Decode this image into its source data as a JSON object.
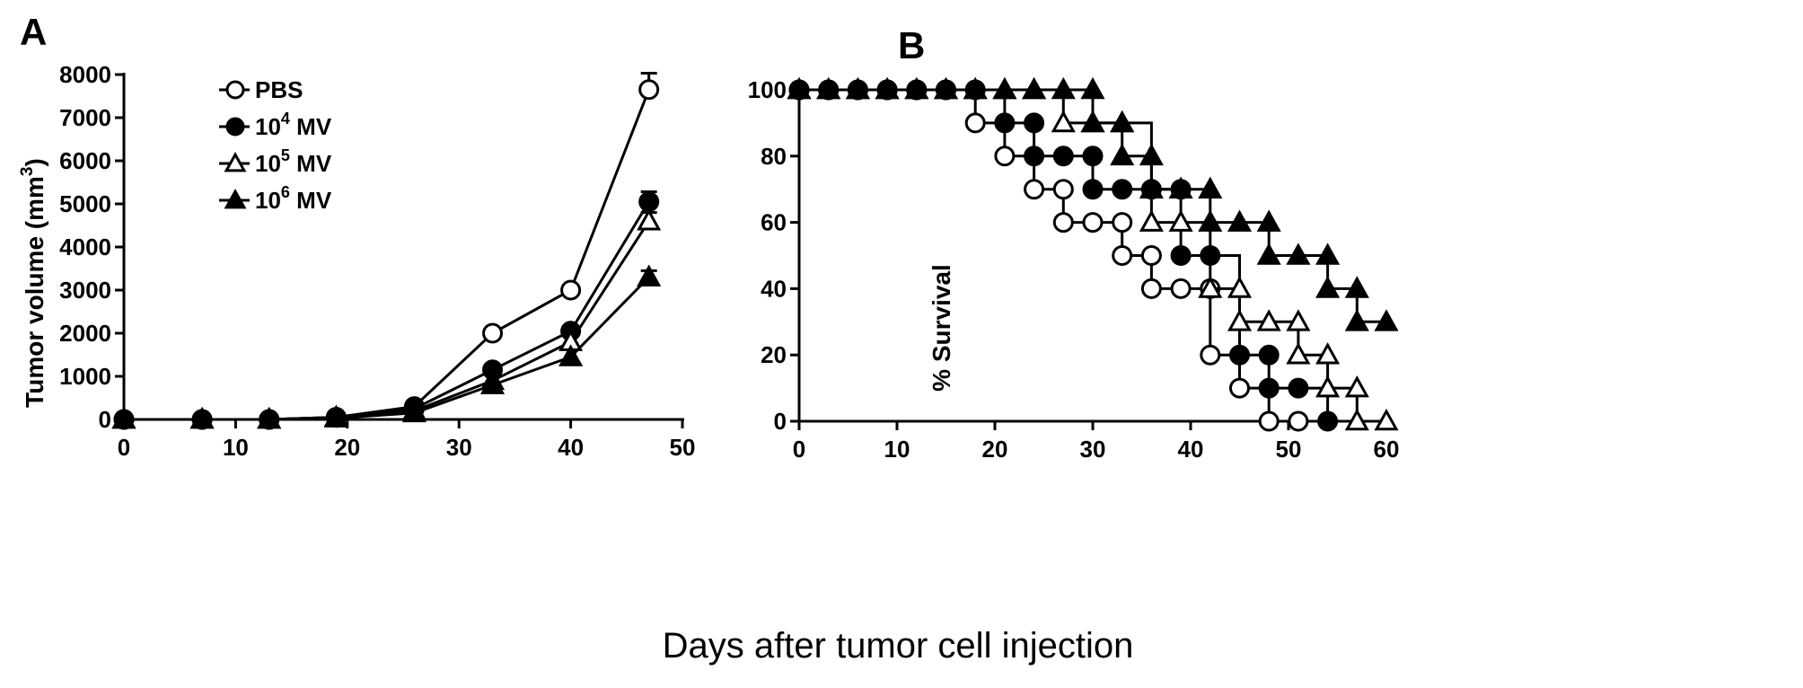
{
  "shared_xlabel": "Days after tumor cell  injection",
  "chart_data": [
    {
      "type": "line",
      "panel_label": "A",
      "xlabel": "",
      "ylabel": "Tumor volume (mm",
      "ylabel_sup": "3",
      "ylabel_end": ")",
      "xlim": [
        0,
        50
      ],
      "ylim": [
        0,
        8000
      ],
      "x_ticks": [
        0,
        10,
        20,
        30,
        40,
        50
      ],
      "y_ticks": [
        0,
        1000,
        2000,
        3000,
        4000,
        5000,
        6000,
        7000,
        8000
      ],
      "grid": false,
      "legend_placement": "top-left",
      "x": [
        0,
        7,
        13,
        19,
        26,
        33,
        40,
        47
      ],
      "series": [
        {
          "name": "PBS",
          "legend_base": "PBS",
          "legend_sup": "",
          "legend_tail": "",
          "marker": "circle-open",
          "values": [
            0,
            0,
            0,
            50,
            300,
            2000,
            3000,
            7650
          ],
          "errors": [
            0,
            0,
            0,
            0,
            0,
            0,
            0,
            380
          ]
        },
        {
          "name": "10^4 MV",
          "legend_base": "10",
          "legend_sup": "4",
          "legend_tail": " MV",
          "marker": "circle-filled",
          "values": [
            0,
            0,
            0,
            50,
            250,
            1150,
            2050,
            5050
          ],
          "errors": [
            0,
            0,
            0,
            0,
            0,
            0,
            0,
            230
          ]
        },
        {
          "name": "10^5 MV",
          "legend_base": "10",
          "legend_sup": "5",
          "legend_tail": " MV",
          "marker": "triangle-open",
          "values": [
            0,
            0,
            0,
            50,
            200,
            900,
            1800,
            4600
          ],
          "errors": [
            0,
            0,
            0,
            0,
            0,
            0,
            0,
            200
          ]
        },
        {
          "name": "10^6 MV",
          "legend_base": "10",
          "legend_sup": "6",
          "legend_tail": " MV",
          "marker": "triangle-filled",
          "values": [
            0,
            0,
            0,
            30,
            150,
            800,
            1450,
            3300
          ],
          "errors": [
            0,
            0,
            0,
            0,
            0,
            0,
            0,
            150
          ]
        }
      ]
    },
    {
      "type": "line",
      "panel_label": "B",
      "xlabel": "",
      "ylabel": "% Survival",
      "xlim": [
        0,
        60
      ],
      "ylim": [
        0,
        100
      ],
      "x_ticks": [
        0,
        10,
        20,
        30,
        40,
        50,
        60
      ],
      "y_ticks": [
        0,
        20,
        40,
        60,
        80,
        100
      ],
      "grid": false,
      "step": true,
      "series": [
        {
          "name": "PBS",
          "marker": "circle-open",
          "points": [
            [
              0,
              100
            ],
            [
              3,
              100
            ],
            [
              6,
              100
            ],
            [
              9,
              100
            ],
            [
              12,
              100
            ],
            [
              15,
              100
            ],
            [
              18,
              90
            ],
            [
              21,
              80
            ],
            [
              24,
              70
            ],
            [
              27,
              70
            ],
            [
              27,
              60
            ],
            [
              30,
              60
            ],
            [
              33,
              60
            ],
            [
              33,
              50
            ],
            [
              36,
              50
            ],
            [
              36,
              40
            ],
            [
              39,
              40
            ],
            [
              42,
              40
            ],
            [
              42,
              20
            ],
            [
              45,
              10
            ],
            [
              48,
              0
            ],
            [
              51,
              0
            ]
          ]
        },
        {
          "name": "10^4 MV",
          "marker": "circle-filled",
          "points": [
            [
              0,
              100
            ],
            [
              3,
              100
            ],
            [
              6,
              100
            ],
            [
              9,
              100
            ],
            [
              12,
              100
            ],
            [
              15,
              100
            ],
            [
              18,
              100
            ],
            [
              21,
              90
            ],
            [
              24,
              90
            ],
            [
              24,
              80
            ],
            [
              27,
              80
            ],
            [
              30,
              80
            ],
            [
              30,
              70
            ],
            [
              33,
              70
            ],
            [
              36,
              70
            ],
            [
              39,
              70
            ],
            [
              39,
              50
            ],
            [
              42,
              50
            ],
            [
              45,
              20
            ],
            [
              48,
              20
            ],
            [
              48,
              10
            ],
            [
              51,
              10
            ],
            [
              54,
              0
            ]
          ]
        },
        {
          "name": "10^5 MV",
          "marker": "triangle-open",
          "points": [
            [
              0,
              100
            ],
            [
              3,
              100
            ],
            [
              6,
              100
            ],
            [
              9,
              100
            ],
            [
              12,
              100
            ],
            [
              15,
              100
            ],
            [
              18,
              100
            ],
            [
              21,
              100
            ],
            [
              24,
              100
            ],
            [
              27,
              90
            ],
            [
              30,
              90
            ],
            [
              33,
              90
            ],
            [
              36,
              60
            ],
            [
              39,
              60
            ],
            [
              42,
              40
            ],
            [
              45,
              40
            ],
            [
              45,
              30
            ],
            [
              48,
              30
            ],
            [
              51,
              30
            ],
            [
              51,
              20
            ],
            [
              54,
              20
            ],
            [
              54,
              10
            ],
            [
              57,
              10
            ],
            [
              57,
              0
            ],
            [
              60,
              0
            ]
          ]
        },
        {
          "name": "10^6 MV",
          "marker": "triangle-filled",
          "points": [
            [
              0,
              100
            ],
            [
              3,
              100
            ],
            [
              6,
              100
            ],
            [
              9,
              100
            ],
            [
              12,
              100
            ],
            [
              15,
              100
            ],
            [
              18,
              100
            ],
            [
              21,
              100
            ],
            [
              24,
              100
            ],
            [
              27,
              100
            ],
            [
              30,
              100
            ],
            [
              30,
              90
            ],
            [
              33,
              90
            ],
            [
              33,
              80
            ],
            [
              36,
              80
            ],
            [
              36,
              70
            ],
            [
              39,
              70
            ],
            [
              42,
              70
            ],
            [
              42,
              60
            ],
            [
              45,
              60
            ],
            [
              48,
              60
            ],
            [
              48,
              50
            ],
            [
              51,
              50
            ],
            [
              54,
              50
            ],
            [
              54,
              40
            ],
            [
              57,
              40
            ],
            [
              57,
              30
            ],
            [
              60,
              30
            ]
          ]
        }
      ]
    }
  ]
}
